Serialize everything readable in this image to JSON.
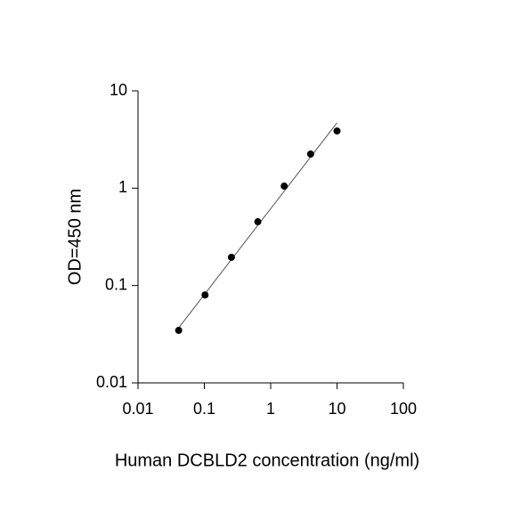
{
  "chart_data": {
    "type": "scatter",
    "x_label": "Human DCBLD2 concentration (ng/ml)",
    "y_label": "OD=450 nm",
    "x": [
      0.041,
      0.1024,
      0.256,
      0.64,
      1.6,
      4,
      10
    ],
    "values": [
      0.0346,
      0.08,
      0.195,
      0.452,
      1.05,
      2.24,
      3.87
    ],
    "color": "#000000",
    "fit_line": {
      "x": [
        0.041,
        10
      ],
      "values": [
        0.0368,
        4.69
      ],
      "color": "#555555"
    },
    "xlim": [
      0.01,
      100
    ],
    "xticks": [
      0.01,
      0.1,
      1,
      10,
      100
    ],
    "ylim": [
      0.01,
      10
    ],
    "yticks": [
      0.01,
      0.1,
      1,
      10
    ],
    "x_log": true,
    "y_log": true,
    "grid": false
  }
}
